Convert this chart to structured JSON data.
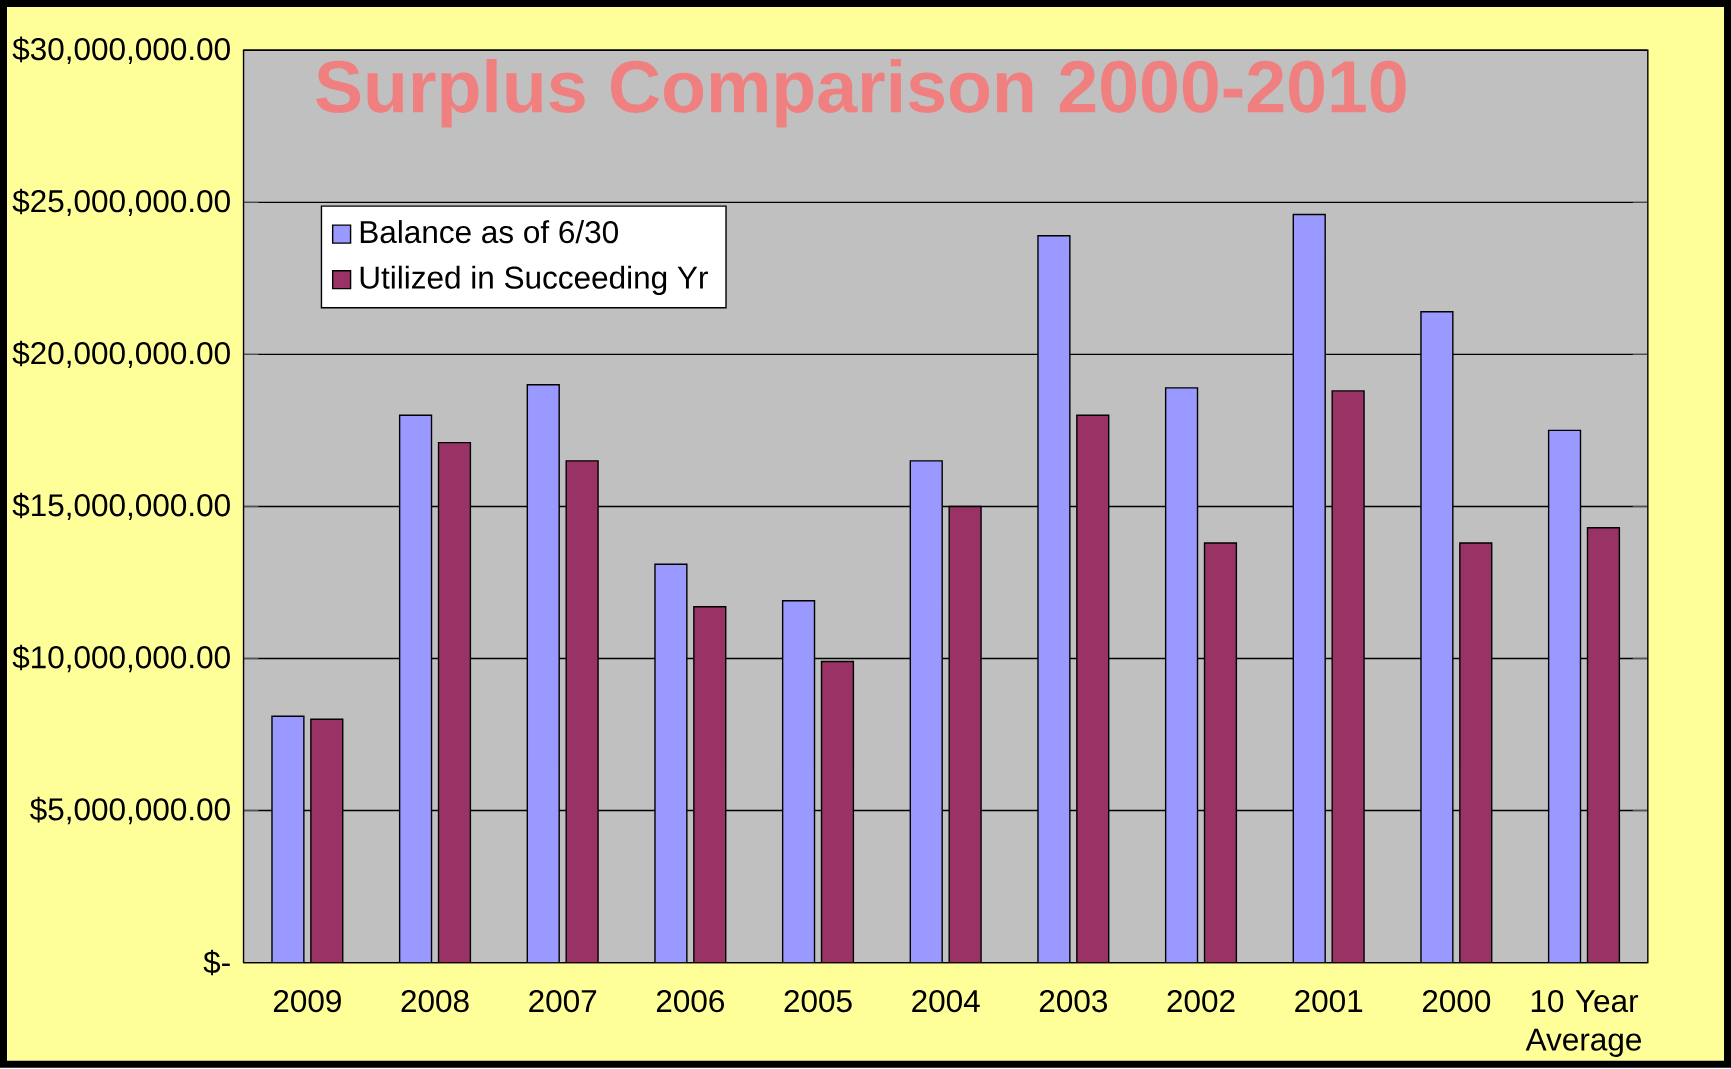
{
  "chart_data": {
    "type": "bar",
    "title": "Surplus Comparison 2000-2010",
    "categories": [
      "2009",
      "2008",
      "2007",
      "2006",
      "2005",
      "2004",
      "2003",
      "2002",
      "2001",
      "2000",
      "10 Year Average"
    ],
    "series": [
      {
        "name": "Balance as of 6/30",
        "color": "#9999ff",
        "values": [
          8100000,
          18000000,
          19000000,
          13100000,
          11900000,
          16500000,
          23900000,
          18900000,
          24600000,
          21400000,
          17500000
        ]
      },
      {
        "name": "Utilized in Succeeding Yr",
        "color": "#993366",
        "values": [
          8000000,
          17100000,
          16500000,
          11700000,
          9900000,
          15000000,
          18000000,
          13800000,
          18800000,
          13800000,
          14300000
        ]
      }
    ],
    "ylim": [
      0,
      30000000
    ],
    "yticks": [
      {
        "value": 0,
        "label": "$-"
      },
      {
        "value": 5000000,
        "label": "$5,000,000.00"
      },
      {
        "value": 10000000,
        "label": "$10,000,000.00"
      },
      {
        "value": 15000000,
        "label": "$15,000,000.00"
      },
      {
        "value": 20000000,
        "label": "$20,000,000.00"
      },
      {
        "value": 25000000,
        "label": "$25,000,000.00"
      },
      {
        "value": 30000000,
        "label": "$30,000,000.00"
      }
    ],
    "grid": "y",
    "legend": "top left"
  }
}
